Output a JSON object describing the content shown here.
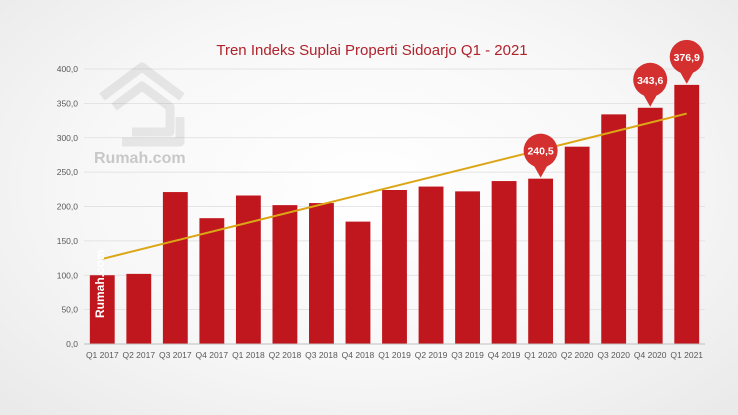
{
  "chart_data": {
    "type": "bar",
    "title": "Tren Indeks Suplai Properti Sidoarjo Q1 - 2021",
    "xlabel": "",
    "ylabel": "",
    "ylim": [
      0,
      400
    ],
    "yticks": [
      "0,0",
      "50,0",
      "100,0",
      "150,0",
      "200,0",
      "250,0",
      "300,0",
      "350,0",
      "400,0"
    ],
    "grid": true,
    "legend": "none",
    "categories": [
      "Q1 2017",
      "Q2 2017",
      "Q3 2017",
      "Q4 2017",
      "Q1 2018",
      "Q2 2018",
      "Q3 2018",
      "Q4 2018",
      "Q1 2019",
      "Q2 2019",
      "Q3 2019",
      "Q4 2019",
      "Q1 2020",
      "Q2 2020",
      "Q3 2020",
      "Q4 2020",
      "Q1 2021"
    ],
    "values": [
      100,
      102,
      221,
      183,
      216,
      202,
      205,
      178,
      224,
      229,
      222,
      237,
      240.5,
      287,
      334,
      343.6,
      376.9
    ],
    "callouts": [
      {
        "category": "Q1 2020",
        "label": "240,5"
      },
      {
        "category": "Q4 2020",
        "label": "343,6"
      },
      {
        "category": "Q1 2021",
        "label": "376,9"
      }
    ],
    "trendline": {
      "type": "linear",
      "color": "#dba515"
    },
    "colors": {
      "bar": "#c0161e",
      "callout": "#d3302f",
      "title": "#b0222b",
      "grid": "#dddddd"
    }
  },
  "watermark": {
    "brand": "Rumah.com",
    "vertical_text": "Rumah.com",
    "icon": "rumah-logo-icon"
  }
}
